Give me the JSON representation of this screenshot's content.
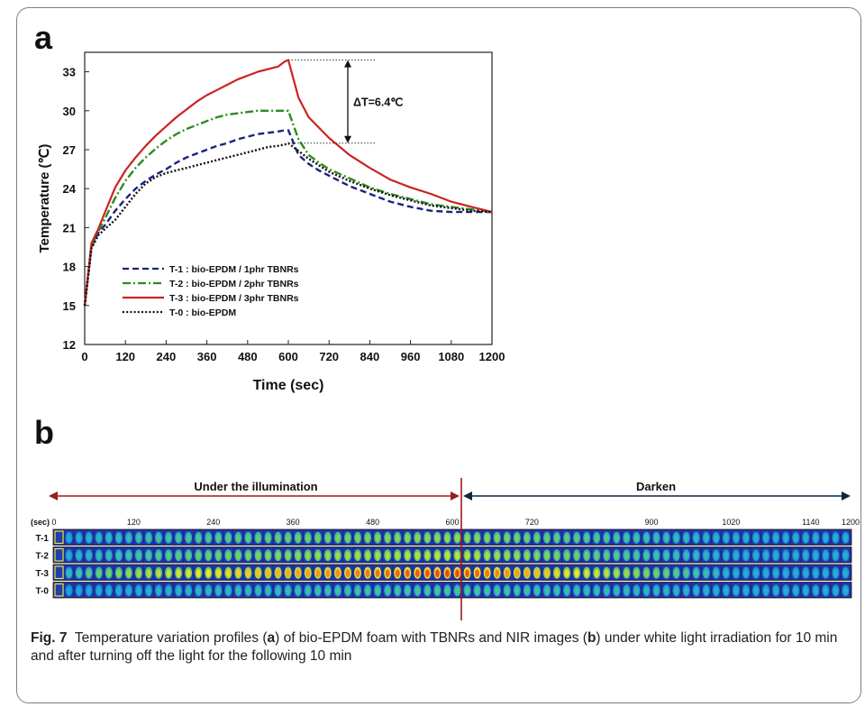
{
  "chart_data": [
    {
      "panel": "a",
      "type": "line",
      "xlabel": "Time (sec)",
      "ylabel": "Temperature (℃)",
      "xlim": [
        0,
        1200
      ],
      "ylim": [
        12,
        34.5
      ],
      "xticks": [
        0,
        120,
        240,
        360,
        480,
        600,
        720,
        840,
        960,
        1080,
        1200
      ],
      "yticks": [
        12,
        15,
        18,
        21,
        24,
        27,
        30,
        33
      ],
      "legend_position": "bottom-left",
      "annotation": "ΔT=6.4℃",
      "series": [
        {
          "name": "T-1 : bio-EPDM / 1phr TBNRs",
          "color": "#1a237e",
          "dash": "dashed",
          "x": [
            0,
            20,
            40,
            60,
            90,
            120,
            150,
            180,
            210,
            240,
            270,
            300,
            330,
            360,
            390,
            420,
            450,
            480,
            510,
            540,
            570,
            590,
            600,
            630,
            660,
            690,
            720,
            780,
            840,
            900,
            960,
            1020,
            1080,
            1140,
            1200
          ],
          "y": [
            15.0,
            19.5,
            20.6,
            21.2,
            22.3,
            23.2,
            24.0,
            24.6,
            25.1,
            25.5,
            26.0,
            26.4,
            26.7,
            27.0,
            27.3,
            27.5,
            27.8,
            28.0,
            28.2,
            28.3,
            28.4,
            28.5,
            28.5,
            26.6,
            25.9,
            25.4,
            25.0,
            24.2,
            23.6,
            23.0,
            22.6,
            22.3,
            22.2,
            22.2,
            22.2
          ]
        },
        {
          "name": "T-2 : bio-EPDM / 2phr TBNRs",
          "color": "#2e8b22",
          "dash": "dashdot",
          "x": [
            0,
            20,
            40,
            60,
            90,
            120,
            150,
            180,
            210,
            240,
            270,
            300,
            330,
            360,
            390,
            420,
            450,
            480,
            510,
            540,
            570,
            590,
            600,
            630,
            660,
            690,
            720,
            780,
            840,
            900,
            960,
            1020,
            1080,
            1140,
            1200
          ],
          "y": [
            15.0,
            19.6,
            20.7,
            21.7,
            23.3,
            24.6,
            25.6,
            26.4,
            27.1,
            27.7,
            28.2,
            28.6,
            28.9,
            29.2,
            29.5,
            29.7,
            29.8,
            29.9,
            30.0,
            30.0,
            30.0,
            30.0,
            30.0,
            27.8,
            26.6,
            26.0,
            25.5,
            24.8,
            24.1,
            23.6,
            23.2,
            22.8,
            22.6,
            22.4,
            22.2
          ]
        },
        {
          "name": "T-3 : bio-EPDM / 3phr TBNRs",
          "color": "#cc2222",
          "dash": "solid",
          "x": [
            0,
            20,
            40,
            60,
            90,
            120,
            150,
            180,
            210,
            240,
            270,
            300,
            330,
            360,
            390,
            420,
            450,
            480,
            510,
            540,
            570,
            590,
            600,
            630,
            660,
            690,
            720,
            780,
            840,
            900,
            960,
            1020,
            1080,
            1140,
            1200
          ],
          "y": [
            15.0,
            19.8,
            20.9,
            22.2,
            24.1,
            25.4,
            26.4,
            27.3,
            28.1,
            28.8,
            29.5,
            30.1,
            30.7,
            31.2,
            31.6,
            32.0,
            32.4,
            32.7,
            33.0,
            33.2,
            33.4,
            33.8,
            33.9,
            31.0,
            29.5,
            28.7,
            27.9,
            26.6,
            25.6,
            24.7,
            24.1,
            23.6,
            23.0,
            22.6,
            22.2
          ]
        },
        {
          "name": "T-0 : bio-EPDM",
          "color": "#111111",
          "dash": "dotted",
          "x": [
            0,
            20,
            40,
            60,
            90,
            120,
            150,
            180,
            210,
            240,
            270,
            300,
            330,
            360,
            390,
            420,
            450,
            480,
            510,
            540,
            570,
            590,
            600,
            630,
            660,
            690,
            720,
            780,
            840,
            900,
            960,
            1020,
            1080,
            1140,
            1200
          ],
          "y": [
            15.0,
            19.4,
            20.4,
            20.9,
            21.6,
            22.6,
            23.6,
            24.4,
            24.9,
            25.2,
            25.4,
            25.6,
            25.8,
            26.0,
            26.2,
            26.4,
            26.6,
            26.8,
            27.0,
            27.2,
            27.3,
            27.4,
            27.5,
            26.9,
            26.3,
            25.8,
            25.3,
            24.6,
            24.0,
            23.5,
            23.1,
            22.7,
            22.5,
            22.3,
            22.2
          ]
        }
      ]
    },
    {
      "panel": "b",
      "type": "heatmap",
      "title_left": "Under the illumination",
      "title_right": "Darken",
      "time_label": "(sec)",
      "time_ticks": [
        0,
        120,
        240,
        360,
        480,
        600,
        720,
        900,
        1020,
        1140,
        1200
      ],
      "rows": [
        "T-1",
        "T-2",
        "T-3",
        "T-0"
      ],
      "intensity_peak": [
        0.55,
        0.62,
        0.95,
        0.42
      ],
      "frames": 80
    }
  ],
  "labels": {
    "panel_a": "a",
    "panel_b": "b"
  },
  "caption": {
    "prefix": "Fig. 7",
    "text_1": "Temperature variation profiles (",
    "a": "a",
    "text_2": ") of bio-EPDM foam with TBNRs and NIR images (",
    "b": "b",
    "text_3": ") under white light irradiation for 10 min and after turning off the light for the following 10 min"
  }
}
